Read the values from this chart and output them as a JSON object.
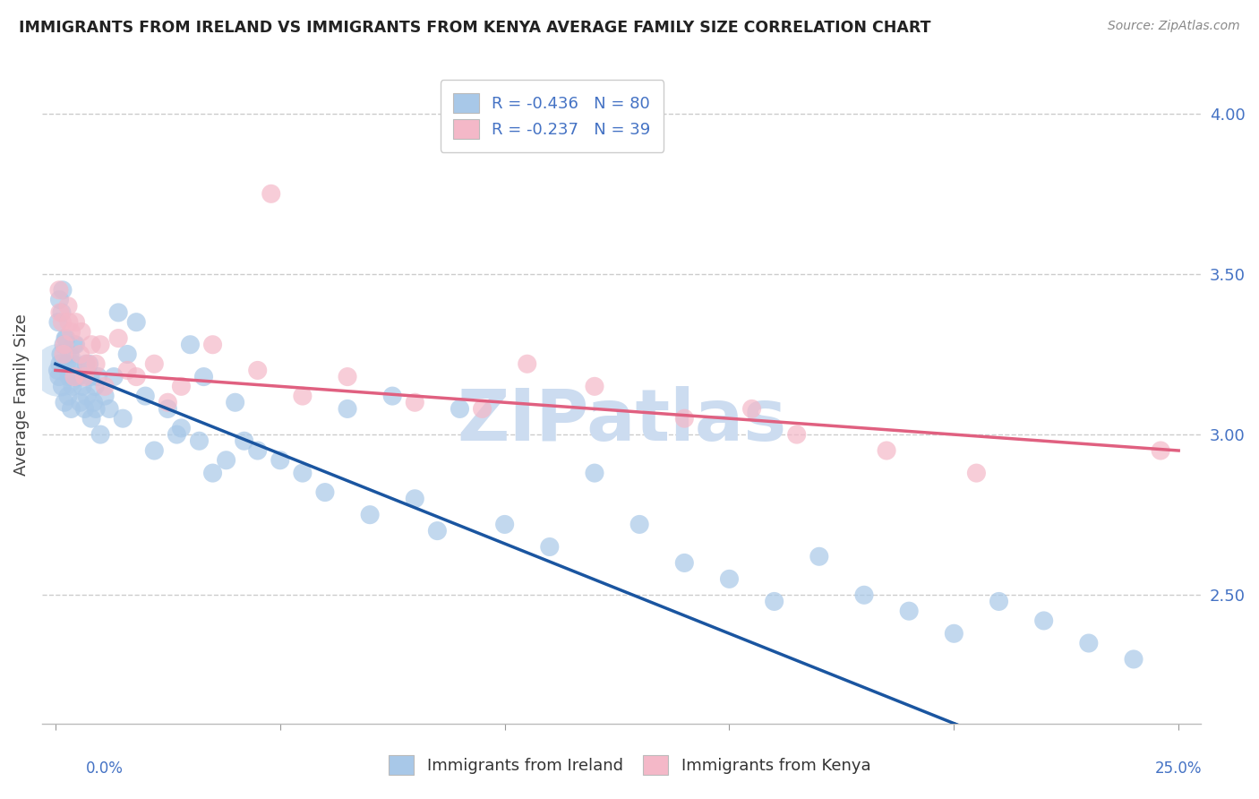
{
  "title": "IMMIGRANTS FROM IRELAND VS IMMIGRANTS FROM KENYA AVERAGE FAMILY SIZE CORRELATION CHART",
  "source": "Source: ZipAtlas.com",
  "ylabel": "Average Family Size",
  "ylabel_right_ticks": [
    "2.50",
    "3.00",
    "3.50",
    "4.00"
  ],
  "ylabel_right_vals": [
    2.5,
    3.0,
    3.5,
    4.0
  ],
  "ylim": [
    2.1,
    4.15
  ],
  "xlim": [
    -0.3,
    25.5
  ],
  "legend_ireland": "R = -0.436   N = 80",
  "legend_kenya": "R = -0.237   N = 39",
  "color_ireland": "#a8c8e8",
  "color_kenya": "#f4b8c8",
  "line_color_ireland": "#1a55a0",
  "line_color_kenya": "#e06080",
  "watermark_color": "#ccdcf0",
  "ireland_line_start_y": 3.22,
  "ireland_line_end_y": 1.82,
  "kenya_line_start_y": 3.2,
  "kenya_line_end_y": 2.95,
  "ireland_scatter_x": [
    0.05,
    0.08,
    0.1,
    0.12,
    0.15,
    0.18,
    0.2,
    0.22,
    0.25,
    0.28,
    0.3,
    0.32,
    0.35,
    0.38,
    0.4,
    0.45,
    0.5,
    0.55,
    0.6,
    0.65,
    0.7,
    0.75,
    0.8,
    0.85,
    0.9,
    0.95,
    1.0,
    1.1,
    1.2,
    1.3,
    1.5,
    1.6,
    1.8,
    2.0,
    2.2,
    2.5,
    2.7,
    3.0,
    3.2,
    3.5,
    3.8,
    4.0,
    4.5,
    5.0,
    5.5,
    6.0,
    6.5,
    7.0,
    7.5,
    8.0,
    9.0,
    10.0,
    11.0,
    12.0,
    13.0,
    14.0,
    15.0,
    16.0,
    17.0,
    18.0,
    19.0,
    20.0,
    21.0,
    22.0,
    23.0,
    24.0,
    0.06,
    0.09,
    0.14,
    0.16,
    0.24,
    0.42,
    0.68,
    0.78,
    0.88,
    1.4,
    2.8,
    3.3,
    4.2,
    8.5
  ],
  "ireland_scatter_y": [
    3.2,
    3.18,
    3.22,
    3.25,
    3.15,
    3.28,
    3.1,
    3.3,
    3.22,
    3.12,
    3.18,
    3.25,
    3.08,
    3.15,
    3.22,
    3.28,
    3.18,
    3.1,
    3.15,
    3.08,
    3.12,
    3.22,
    3.05,
    3.1,
    3.08,
    3.18,
    3.0,
    3.12,
    3.08,
    3.18,
    3.05,
    3.25,
    3.35,
    3.12,
    2.95,
    3.08,
    3.0,
    3.28,
    2.98,
    2.88,
    2.92,
    3.1,
    2.95,
    2.92,
    2.88,
    2.82,
    3.08,
    2.75,
    3.12,
    2.8,
    3.08,
    2.72,
    2.65,
    2.88,
    2.72,
    2.6,
    2.55,
    2.48,
    2.62,
    2.5,
    2.45,
    2.38,
    2.48,
    2.42,
    2.35,
    2.3,
    3.35,
    3.42,
    3.38,
    3.45,
    3.3,
    3.28,
    3.22,
    3.18,
    3.15,
    3.38,
    3.02,
    3.18,
    2.98,
    2.7
  ],
  "kenya_scatter_x": [
    0.08,
    0.1,
    0.15,
    0.2,
    0.28,
    0.35,
    0.45,
    0.55,
    0.65,
    0.8,
    0.9,
    1.1,
    1.4,
    1.8,
    2.2,
    2.8,
    3.5,
    4.5,
    5.5,
    6.5,
    8.0,
    9.5,
    10.5,
    12.0,
    14.0,
    15.5,
    16.5,
    18.5,
    20.5,
    0.18,
    0.3,
    0.42,
    0.58,
    0.72,
    1.0,
    1.6,
    2.5,
    24.6,
    4.8
  ],
  "kenya_scatter_y": [
    3.45,
    3.38,
    3.35,
    3.28,
    3.4,
    3.32,
    3.35,
    3.25,
    3.18,
    3.28,
    3.22,
    3.15,
    3.3,
    3.18,
    3.22,
    3.15,
    3.28,
    3.2,
    3.12,
    3.18,
    3.1,
    3.08,
    3.22,
    3.15,
    3.05,
    3.08,
    3.0,
    2.95,
    2.88,
    3.25,
    3.35,
    3.18,
    3.32,
    3.22,
    3.28,
    3.2,
    3.1,
    2.95,
    3.75
  ],
  "large_dot_x": 0.08,
  "large_dot_y": 3.2,
  "large_dot_size": 1800
}
